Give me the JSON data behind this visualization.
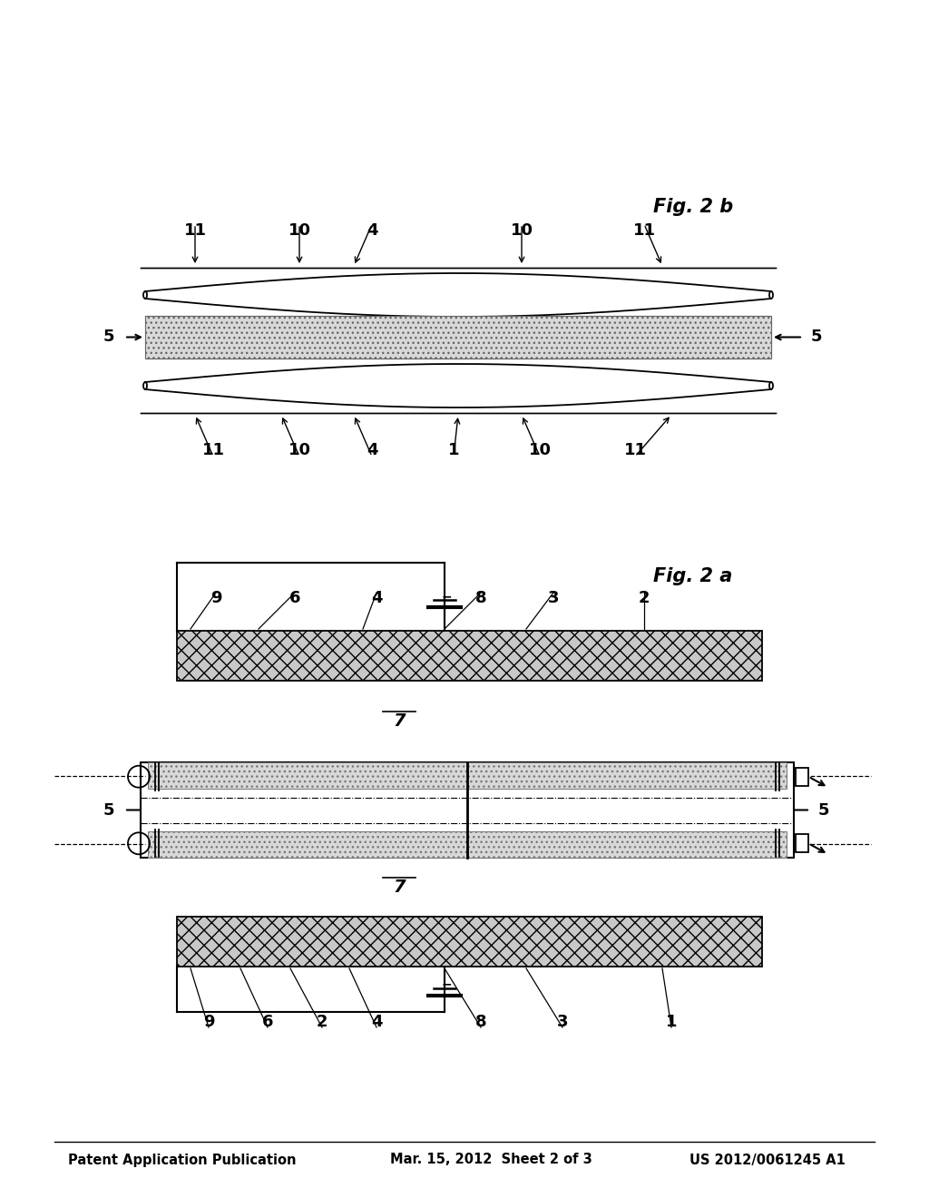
{
  "bg_color": "#ffffff",
  "header_left": "Patent Application Publication",
  "header_mid": "Mar. 15, 2012  Sheet 2 of 3",
  "header_right": "US 2012/0061245 A1",
  "fig2a_label": "Fig. 2 a",
  "fig2b_label": "Fig. 2 b",
  "line_color": "#000000",
  "text_color": "#000000",
  "electrode_hatch_color": "#555555",
  "electrode_face_color": "#c8c8c8",
  "substrate_band_color": "#d8d8d8",
  "label_fontsize": 13,
  "header_fontsize": 10.5,
  "fig_label_fontsize": 15
}
